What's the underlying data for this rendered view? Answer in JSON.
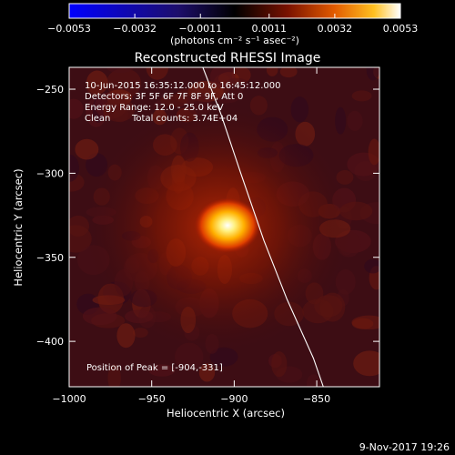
{
  "chart_data": {
    "type": "heatmap",
    "title": "Reconstructed RHESSI Image",
    "xlabel": "Heliocentric X (arcsec)",
    "ylabel": "Heliocentric Y (arcsec)",
    "xlim": [
      -1000,
      -812
    ],
    "ylim": [
      -427,
      -237
    ],
    "xticks": [
      -1000,
      -950,
      -900,
      -850
    ],
    "xtick_labels": [
      "−1000",
      "−950",
      "−900",
      "−850"
    ],
    "yticks": [
      -250,
      -300,
      -350,
      -400
    ],
    "ytick_labels": [
      "−250",
      "−300",
      "−350",
      "−400"
    ],
    "colorbar": {
      "min": -0.0053,
      "max": 0.0053,
      "ticks": [
        -0.0053,
        -0.0032,
        -0.0011,
        0.0011,
        0.0032,
        0.0053
      ],
      "tick_labels": [
        "−0.0053",
        "−0.0032",
        "−0.0011",
        "0.0011",
        "0.0032",
        "0.0053"
      ],
      "unit_label": "(photons cm⁻² s⁻¹ asec⁻²)",
      "colormap": "hot-with-blue-negative"
    },
    "annotations": {
      "time_range": "10-Jun-2015 16:35:12.000 to 16:45:12.000",
      "detectors": "Detectors: 3F 5F 6F 7F 8F 9F, Att 0",
      "energy_range": "Energy Range: 12.0 - 25.0 keV",
      "algorithm": "Clean",
      "total_counts": "Total counts: 3.74E+04",
      "peak_position": "Position of Peak = [-904,-331]"
    },
    "peak": {
      "x": -904,
      "y": -331,
      "value": 0.0053
    },
    "limb_curve": [
      [
        -919,
        -237
      ],
      [
        -908,
        -265
      ],
      [
        -896,
        -300
      ],
      [
        -882,
        -340
      ],
      [
        -868,
        -375
      ],
      [
        -852,
        -410
      ],
      [
        -846,
        -427
      ]
    ],
    "footer": "9-Nov-2017 19:26"
  }
}
